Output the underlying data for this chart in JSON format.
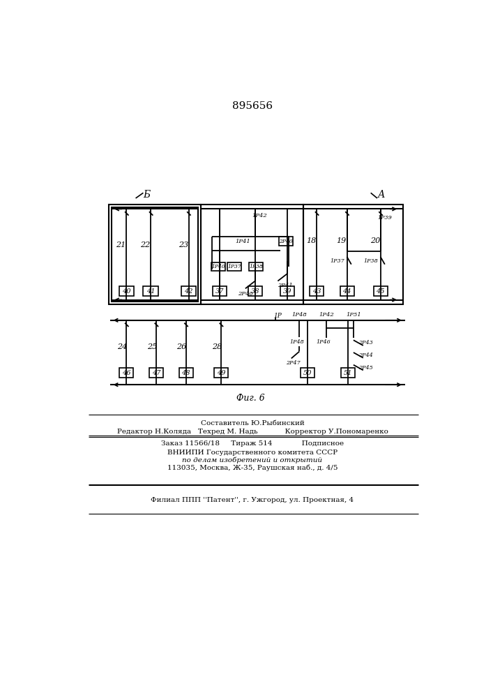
{
  "title": "895656",
  "fig_label": "Фиг. 6",
  "label_b": "Б",
  "label_a": "А",
  "background": "#ffffff"
}
